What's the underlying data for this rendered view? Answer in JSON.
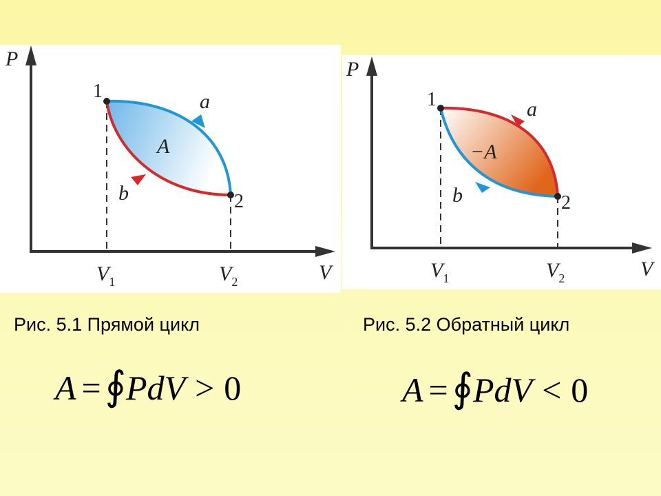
{
  "figures": [
    {
      "axis_y": "P",
      "axis_x": "V",
      "point_1": "1",
      "point_2": "2",
      "path_a": "a",
      "path_b": "b",
      "area": "A",
      "tick_1": {
        "symbol": "V",
        "index": "1"
      },
      "tick_2": {
        "symbol": "V",
        "index": "2"
      },
      "caption": "Рис. 5.1 Прямой цикл",
      "formula": {
        "lhs": "A",
        "eq": "=",
        "integral": "∮",
        "integrand": "PdV",
        "op": ">",
        "rhs": "0"
      }
    },
    {
      "axis_y": "P",
      "axis_x": "V",
      "point_1": "1",
      "point_2": "2",
      "path_a": "a",
      "path_b": "b",
      "area": "−A",
      "tick_1": {
        "symbol": "V",
        "index": "1"
      },
      "tick_2": {
        "symbol": "V",
        "index": "2"
      },
      "caption": "Рис. 5.2  Обратный цикл",
      "formula": {
        "lhs": "A",
        "eq": "=",
        "integral": "∮",
        "integrand": "PdV",
        "op": "<",
        "rhs": "0"
      }
    }
  ]
}
